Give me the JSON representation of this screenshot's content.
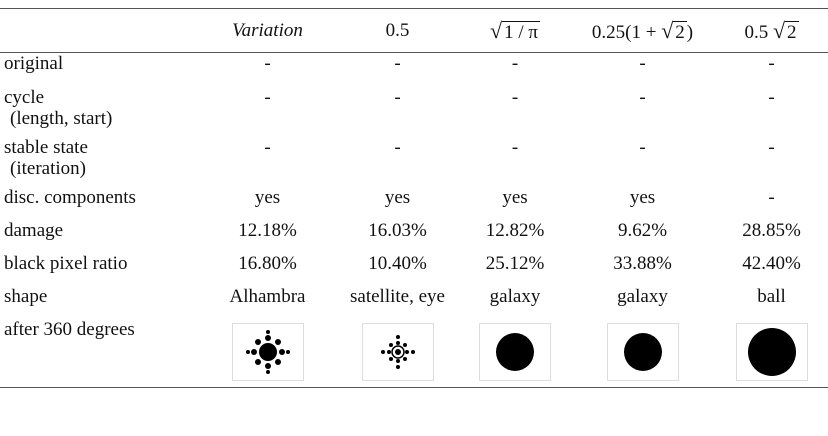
{
  "table": {
    "header": [
      [
        {
          "text": "Variation",
          "italic": true
        }
      ],
      [
        {
          "text": "0.5"
        }
      ],
      [
        {
          "radical": "√",
          "radicand": "1 / π"
        }
      ],
      [
        {
          "text": "0.25(1 + "
        },
        {
          "radical": "√",
          "radicand": "2"
        },
        {
          "text": ")"
        }
      ],
      [
        {
          "text": "0.5 "
        },
        {
          "radical": "√",
          "radicand": "2"
        }
      ]
    ],
    "rows": [
      {
        "label": "original",
        "cells": [
          "-",
          "-",
          "-",
          "-",
          "-"
        ]
      },
      {
        "label": "cycle",
        "sublabel": "(length, start)",
        "cells": [
          "-",
          "-",
          "-",
          "-",
          "-"
        ]
      },
      {
        "label": "stable state",
        "sublabel": "(iteration)",
        "cells": [
          "-",
          "-",
          "-",
          "-",
          "-"
        ]
      },
      {
        "label": "disc. components",
        "cells": [
          "yes",
          "yes",
          "yes",
          "yes",
          "-"
        ]
      },
      {
        "label": "damage",
        "cells": [
          "12.18%",
          "16.03%",
          "12.82%",
          "9.62%",
          "28.85%"
        ]
      },
      {
        "label": "black pixel ratio",
        "cells": [
          "16.80%",
          "10.40%",
          "25.12%",
          "33.88%",
          "42.40%"
        ]
      },
      {
        "label": "shape",
        "cells": [
          "Alhambra",
          "satellite, eye",
          "galaxy",
          "galaxy",
          "ball"
        ]
      },
      {
        "label": "after 360 degrees"
      }
    ]
  }
}
